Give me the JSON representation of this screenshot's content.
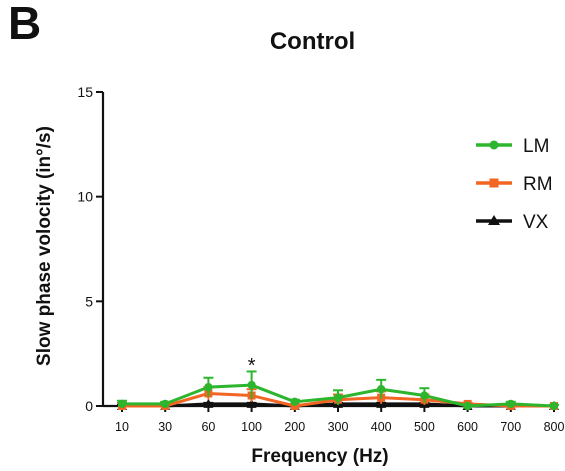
{
  "panel_label": "B",
  "chart_data": {
    "type": "line",
    "title": "Control",
    "xlabel": "Frequency (Hz)",
    "ylabel": "Slow phase volocity (in°/s)",
    "categories": [
      "10",
      "30",
      "60",
      "100",
      "200",
      "300",
      "400",
      "500",
      "600",
      "700",
      "800"
    ],
    "ylim": [
      0,
      15
    ],
    "yticks": [
      0,
      5,
      10,
      15
    ],
    "grid": false,
    "legend_position": "top-right",
    "series": [
      {
        "name": "LM",
        "color": "#2db52d",
        "marker": "circle",
        "values": [
          0.1,
          0.1,
          0.9,
          1.0,
          0.2,
          0.4,
          0.8,
          0.5,
          0.0,
          0.1,
          0.0
        ],
        "errors": [
          0.15,
          0.1,
          0.45,
          0.65,
          0.1,
          0.35,
          0.45,
          0.35,
          0.05,
          0.1,
          0.05
        ]
      },
      {
        "name": "RM",
        "color": "#f26522",
        "marker": "square",
        "values": [
          0.0,
          0.0,
          0.6,
          0.5,
          0.0,
          0.3,
          0.4,
          0.3,
          0.1,
          0.0,
          0.0
        ],
        "errors": [
          0.15,
          0.1,
          0.3,
          0.3,
          0.1,
          0.25,
          0.3,
          0.25,
          0.05,
          0.05,
          0.05
        ]
      },
      {
        "name": "VX",
        "color": "#111111",
        "marker": "triangle",
        "values": [
          0.0,
          0.0,
          0.1,
          0.1,
          0.0,
          0.1,
          0.1,
          0.1,
          0.0,
          0.0,
          0.0
        ],
        "errors": [
          0.05,
          0.05,
          0.05,
          0.05,
          0.05,
          0.05,
          0.05,
          0.05,
          0.05,
          0.05,
          0.05
        ]
      }
    ],
    "annotations": [
      {
        "text": "*",
        "category": "100",
        "y": 2.2
      }
    ]
  }
}
